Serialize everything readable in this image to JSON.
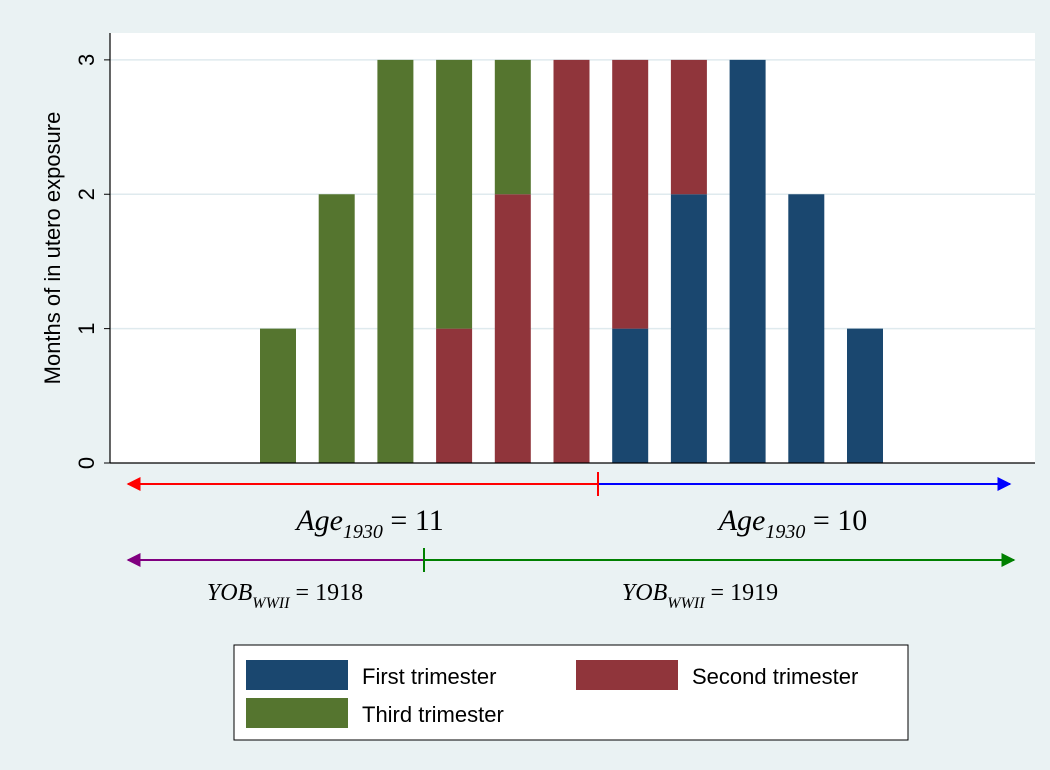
{
  "chart_data": {
    "type": "stacked_bar",
    "y_axis_label": "Months of in utero exposure",
    "categories": [
      null,
      null,
      null,
      null,
      null,
      null,
      null,
      null,
      null,
      null,
      null
    ],
    "series": [
      {
        "name": "First trimester",
        "color": "#1a476f",
        "values": [
          0,
          0,
          0,
          0,
          0,
          0,
          1,
          2,
          3,
          2,
          1
        ]
      },
      {
        "name": "Second trimester",
        "color": "#90353b",
        "values": [
          0,
          0,
          0,
          1,
          2,
          3,
          2,
          1,
          0,
          0,
          0
        ]
      },
      {
        "name": "Third trimester",
        "color": "#55752f",
        "values": [
          1,
          2,
          3,
          2,
          1,
          0,
          0,
          0,
          0,
          0,
          0
        ]
      }
    ],
    "ylim": [
      0,
      3.2
    ],
    "yticks": [
      0,
      1,
      2,
      3
    ],
    "grid": true,
    "annotations": [
      {
        "base": "Age",
        "sub": "1930",
        "rest": " = 11"
      },
      {
        "base": "Age",
        "sub": "1930",
        "rest": " = 10"
      },
      {
        "base": "YOB",
        "sub": "WWII",
        "rest": " = 1918"
      },
      {
        "base": "YOB",
        "sub": "WWII",
        "rest": " = 1919"
      }
    ]
  }
}
